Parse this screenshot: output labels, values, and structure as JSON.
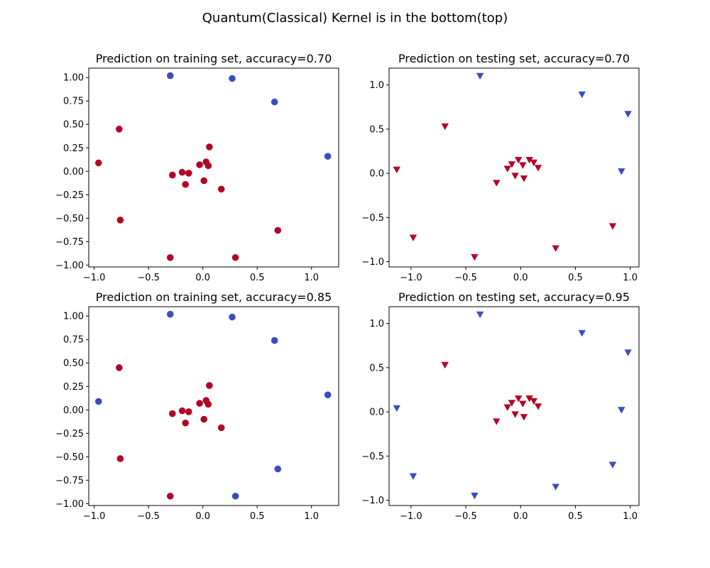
{
  "figure": {
    "title": "Quantum(Classical) Kernel is in the bottom(top)"
  },
  "colors": {
    "class_red": "#b40426",
    "class_blue": "#3b4cc0"
  },
  "chart_data": [
    {
      "type": "scatter",
      "title": "Prediction on training set, accuracy=0.70",
      "marker": "circle",
      "xlim": [
        -1.05,
        1.25
      ],
      "ylim": [
        -1.02,
        1.1
      ],
      "xticks": [
        -1.0,
        -0.5,
        0.0,
        0.5,
        1.0
      ],
      "xtick_labels": [
        "−1.0",
        "−0.5",
        "0.0",
        "0.5",
        "1.0"
      ],
      "yticks": [
        -1.0,
        -0.75,
        -0.5,
        -0.25,
        0.0,
        0.25,
        0.5,
        0.75,
        1.0
      ],
      "ytick_labels": [
        "−1.00",
        "−0.75",
        "−0.50",
        "−0.25",
        "0.00",
        "0.25",
        "0.50",
        "0.75",
        "1.00"
      ],
      "grid": false,
      "points": [
        {
          "x": -0.3,
          "y": 1.02,
          "cls": "blue"
        },
        {
          "x": 0.27,
          "y": 0.99,
          "cls": "blue"
        },
        {
          "x": 0.66,
          "y": 0.74,
          "cls": "blue"
        },
        {
          "x": 1.15,
          "y": 0.16,
          "cls": "blue"
        },
        {
          "x": -0.77,
          "y": 0.45,
          "cls": "red"
        },
        {
          "x": -0.96,
          "y": 0.09,
          "cls": "red"
        },
        {
          "x": 0.06,
          "y": 0.26,
          "cls": "red"
        },
        {
          "x": -0.03,
          "y": 0.07,
          "cls": "red"
        },
        {
          "x": 0.03,
          "y": 0.1,
          "cls": "red"
        },
        {
          "x": 0.05,
          "y": 0.06,
          "cls": "red"
        },
        {
          "x": -0.19,
          "y": -0.01,
          "cls": "red"
        },
        {
          "x": -0.13,
          "y": -0.02,
          "cls": "red"
        },
        {
          "x": -0.28,
          "y": -0.04,
          "cls": "red"
        },
        {
          "x": 0.01,
          "y": -0.1,
          "cls": "red"
        },
        {
          "x": -0.16,
          "y": -0.14,
          "cls": "red"
        },
        {
          "x": 0.17,
          "y": -0.19,
          "cls": "red"
        },
        {
          "x": -0.76,
          "y": -0.52,
          "cls": "red"
        },
        {
          "x": 0.69,
          "y": -0.63,
          "cls": "red"
        },
        {
          "x": -0.3,
          "y": -0.92,
          "cls": "red"
        },
        {
          "x": 0.3,
          "y": -0.92,
          "cls": "red"
        }
      ]
    },
    {
      "type": "scatter",
      "title": "Prediction on testing set, accuracy=0.70",
      "marker": "triangle-down",
      "xlim": [
        -1.2,
        1.08
      ],
      "ylim": [
        -1.06,
        1.19
      ],
      "xticks": [
        -1.0,
        -0.5,
        0.0,
        0.5,
        1.0
      ],
      "xtick_labels": [
        "−1.0",
        "−0.5",
        "0.0",
        "0.5",
        "1.0"
      ],
      "yticks": [
        -1.0,
        -0.5,
        0.0,
        0.5,
        1.0
      ],
      "ytick_labels": [
        "−1.0",
        "−0.5",
        "0.0",
        "0.5",
        "1.0"
      ],
      "grid": false,
      "points": [
        {
          "x": -0.37,
          "y": 1.1,
          "cls": "blue"
        },
        {
          "x": 0.56,
          "y": 0.89,
          "cls": "blue"
        },
        {
          "x": 0.98,
          "y": 0.67,
          "cls": "blue"
        },
        {
          "x": 0.92,
          "y": 0.02,
          "cls": "blue"
        },
        {
          "x": -0.69,
          "y": 0.53,
          "cls": "red"
        },
        {
          "x": -1.13,
          "y": 0.04,
          "cls": "red"
        },
        {
          "x": -0.98,
          "y": -0.73,
          "cls": "red"
        },
        {
          "x": -0.42,
          "y": -0.95,
          "cls": "red"
        },
        {
          "x": 0.32,
          "y": -0.85,
          "cls": "red"
        },
        {
          "x": 0.84,
          "y": -0.6,
          "cls": "red"
        },
        {
          "x": -0.22,
          "y": -0.11,
          "cls": "red"
        },
        {
          "x": -0.12,
          "y": 0.05,
          "cls": "red"
        },
        {
          "x": -0.08,
          "y": 0.1,
          "cls": "red"
        },
        {
          "x": -0.05,
          "y": -0.03,
          "cls": "red"
        },
        {
          "x": -0.02,
          "y": 0.15,
          "cls": "red"
        },
        {
          "x": 0.02,
          "y": 0.09,
          "cls": "red"
        },
        {
          "x": 0.03,
          "y": -0.06,
          "cls": "red"
        },
        {
          "x": 0.08,
          "y": 0.15,
          "cls": "red"
        },
        {
          "x": 0.12,
          "y": 0.12,
          "cls": "red"
        },
        {
          "x": 0.16,
          "y": 0.06,
          "cls": "red"
        }
      ]
    },
    {
      "type": "scatter",
      "title": "Prediction on training set, accuracy=0.85",
      "marker": "circle",
      "xlim": [
        -1.05,
        1.25
      ],
      "ylim": [
        -1.02,
        1.1
      ],
      "xticks": [
        -1.0,
        -0.5,
        0.0,
        0.5,
        1.0
      ],
      "xtick_labels": [
        "−1.0",
        "−0.5",
        "0.0",
        "0.5",
        "1.0"
      ],
      "yticks": [
        -1.0,
        -0.75,
        -0.5,
        -0.25,
        0.0,
        0.25,
        0.5,
        0.75,
        1.0
      ],
      "ytick_labels": [
        "−1.00",
        "−0.75",
        "−0.50",
        "−0.25",
        "0.00",
        "0.25",
        "0.50",
        "0.75",
        "1.00"
      ],
      "grid": false,
      "points": [
        {
          "x": -0.3,
          "y": 1.02,
          "cls": "blue"
        },
        {
          "x": 0.27,
          "y": 0.99,
          "cls": "blue"
        },
        {
          "x": 0.66,
          "y": 0.74,
          "cls": "blue"
        },
        {
          "x": 1.15,
          "y": 0.16,
          "cls": "blue"
        },
        {
          "x": -0.96,
          "y": 0.09,
          "cls": "blue"
        },
        {
          "x": 0.69,
          "y": -0.63,
          "cls": "blue"
        },
        {
          "x": 0.3,
          "y": -0.92,
          "cls": "blue"
        },
        {
          "x": -0.77,
          "y": 0.45,
          "cls": "red"
        },
        {
          "x": 0.06,
          "y": 0.26,
          "cls": "red"
        },
        {
          "x": -0.03,
          "y": 0.07,
          "cls": "red"
        },
        {
          "x": 0.03,
          "y": 0.1,
          "cls": "red"
        },
        {
          "x": 0.05,
          "y": 0.06,
          "cls": "red"
        },
        {
          "x": -0.19,
          "y": -0.01,
          "cls": "red"
        },
        {
          "x": -0.13,
          "y": -0.02,
          "cls": "red"
        },
        {
          "x": -0.28,
          "y": -0.04,
          "cls": "red"
        },
        {
          "x": 0.01,
          "y": -0.1,
          "cls": "red"
        },
        {
          "x": -0.16,
          "y": -0.14,
          "cls": "red"
        },
        {
          "x": 0.17,
          "y": -0.19,
          "cls": "red"
        },
        {
          "x": -0.76,
          "y": -0.52,
          "cls": "red"
        },
        {
          "x": -0.3,
          "y": -0.92,
          "cls": "red"
        }
      ]
    },
    {
      "type": "scatter",
      "title": "Prediction on testing set, accuracy=0.95",
      "marker": "triangle-down",
      "xlim": [
        -1.2,
        1.08
      ],
      "ylim": [
        -1.06,
        1.19
      ],
      "xticks": [
        -1.0,
        -0.5,
        0.0,
        0.5,
        1.0
      ],
      "xtick_labels": [
        "−1.0",
        "−0.5",
        "0.0",
        "0.5",
        "1.0"
      ],
      "yticks": [
        -1.0,
        -0.5,
        0.0,
        0.5,
        1.0
      ],
      "ytick_labels": [
        "−1.0",
        "−0.5",
        "0.0",
        "0.5",
        "1.0"
      ],
      "grid": false,
      "points": [
        {
          "x": -0.37,
          "y": 1.1,
          "cls": "blue"
        },
        {
          "x": 0.56,
          "y": 0.89,
          "cls": "blue"
        },
        {
          "x": 0.98,
          "y": 0.67,
          "cls": "blue"
        },
        {
          "x": 0.92,
          "y": 0.02,
          "cls": "blue"
        },
        {
          "x": -1.13,
          "y": 0.04,
          "cls": "blue"
        },
        {
          "x": -0.98,
          "y": -0.73,
          "cls": "blue"
        },
        {
          "x": -0.42,
          "y": -0.95,
          "cls": "blue"
        },
        {
          "x": 0.32,
          "y": -0.85,
          "cls": "blue"
        },
        {
          "x": 0.84,
          "y": -0.6,
          "cls": "blue"
        },
        {
          "x": -0.69,
          "y": 0.53,
          "cls": "red"
        },
        {
          "x": -0.22,
          "y": -0.11,
          "cls": "red"
        },
        {
          "x": -0.12,
          "y": 0.05,
          "cls": "red"
        },
        {
          "x": -0.08,
          "y": 0.1,
          "cls": "red"
        },
        {
          "x": -0.05,
          "y": -0.03,
          "cls": "red"
        },
        {
          "x": -0.02,
          "y": 0.15,
          "cls": "red"
        },
        {
          "x": 0.02,
          "y": 0.09,
          "cls": "red"
        },
        {
          "x": 0.03,
          "y": -0.06,
          "cls": "red"
        },
        {
          "x": 0.08,
          "y": 0.15,
          "cls": "red"
        },
        {
          "x": 0.12,
          "y": 0.12,
          "cls": "red"
        },
        {
          "x": 0.16,
          "y": 0.06,
          "cls": "red"
        }
      ]
    }
  ]
}
